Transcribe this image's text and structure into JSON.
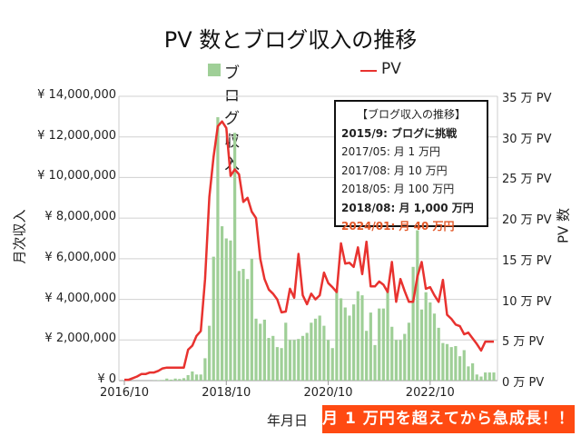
{
  "title": "PV 数とブログ収入の推移",
  "legend": {
    "bar_label": "ブログ収入",
    "line_label": "PV",
    "position": "top"
  },
  "colors": {
    "bar": "#9fcf97",
    "line": "#e8322f",
    "banner_bg": "#ff4a12",
    "highlight_text": "#e35a2b",
    "grid": "#d0d0d0"
  },
  "annotation_box": {
    "heading": "【ブログ収入の推移】",
    "lines": [
      {
        "text": "2015/9: ブログに挑戦",
        "style": "bold"
      },
      {
        "text": "2017/05: 月 1 万円",
        "style": "normal"
      },
      {
        "text": "2017/08: 月 10 万円",
        "style": "normal"
      },
      {
        "text": "2018/05: 月 100 万円",
        "style": "normal"
      },
      {
        "text": "2018/08: 月 1,000 万円",
        "style": "bold"
      },
      {
        "text": "2024/01: 月 40 万円",
        "style": "highlight"
      }
    ]
  },
  "banner": "月 1 万円を超えてから急成長！！",
  "chart_data": {
    "type": "bar+line",
    "title": "PV 数とブログ収入の推移",
    "xlabel": "年月日",
    "ylabel_left": "月次収入",
    "ylabel_right": "PV 数",
    "x_start": "2016/10",
    "x_end": "2024/01",
    "x_interval": "monthly",
    "x_tick_labels": [
      "2016/10",
      "2018/10",
      "2020/10",
      "2022/10"
    ],
    "y_left_lim": [
      0,
      14000000
    ],
    "y_left_ticks": [
      "¥ 0",
      "¥ 2,000,000",
      "¥ 4,000,000",
      "¥ 6,000,000",
      "¥ 8,000,000",
      "¥ 10,000,000",
      "¥ 12,000,000",
      "¥ 14,000,000"
    ],
    "y_right_lim": [
      0,
      350000
    ],
    "y_right_ticks": [
      "0 万 PV",
      "5 万 PV",
      "10 万 PV",
      "15 万 PV",
      "20 万 PV",
      "25 万 PV",
      "30 万 PV",
      "35 万 PV"
    ],
    "grid": true,
    "series": [
      {
        "name": "ブログ収入",
        "kind": "bar",
        "axis": "left",
        "unit": "JPY",
        "values": [
          0,
          0,
          0,
          0,
          0,
          0,
          0,
          10000,
          20000,
          30000,
          100000,
          50000,
          100000,
          80000,
          120000,
          270000,
          450000,
          300000,
          300000,
          1100000,
          2700000,
          6100000,
          12970000,
          7600000,
          7000000,
          6900000,
          12200000,
          5400000,
          5500000,
          5000000,
          6000000,
          3050000,
          2800000,
          3000000,
          2100000,
          2200000,
          1650000,
          1600000,
          2850000,
          2000000,
          2000000,
          2050000,
          2200000,
          2350000,
          2850000,
          3050000,
          3200000,
          2700000,
          2000000,
          1600000,
          4470000,
          4050000,
          3600000,
          3200000,
          3750000,
          4400000,
          4200000,
          2450000,
          3350000,
          1750000,
          3550000,
          3550000,
          4550000,
          2650000,
          2000000,
          2000000,
          2300000,
          2850000,
          5600000,
          7400000,
          3500000,
          4350000,
          3850000,
          3300000,
          2600000,
          1850000,
          1800000,
          1650000,
          1700000,
          1200000,
          1500000,
          700000,
          850000,
          300000,
          200000,
          400000,
          400000,
          400000
        ]
      },
      {
        "name": "PV",
        "kind": "line",
        "axis": "right",
        "unit": "PV",
        "values": [
          1000,
          1000,
          3000,
          5000,
          8000,
          8000,
          10000,
          10000,
          12000,
          15000,
          16000,
          16000,
          16000,
          16000,
          16000,
          38000,
          43000,
          55000,
          61000,
          125000,
          226000,
          275000,
          313000,
          319000,
          311000,
          252000,
          260000,
          254000,
          220000,
          225000,
          208000,
          200000,
          150000,
          125000,
          112000,
          107000,
          100000,
          84000,
          85000,
          113000,
          102000,
          156000,
          105000,
          94000,
          107000,
          100000,
          105000,
          133000,
          120000,
          115000,
          109000,
          169000,
          144000,
          145000,
          140000,
          164000,
          131000,
          171000,
          116000,
          116000,
          122000,
          118000,
          109000,
          146000,
          97000,
          125000,
          110000,
          97000,
          97000,
          128000,
          146000,
          113000,
          115000,
          105000,
          97000,
          124000,
          81000,
          76000,
          69000,
          67000,
          57000,
          59000,
          52000,
          45000,
          37000,
          48000,
          48000,
          48000
        ]
      }
    ]
  }
}
